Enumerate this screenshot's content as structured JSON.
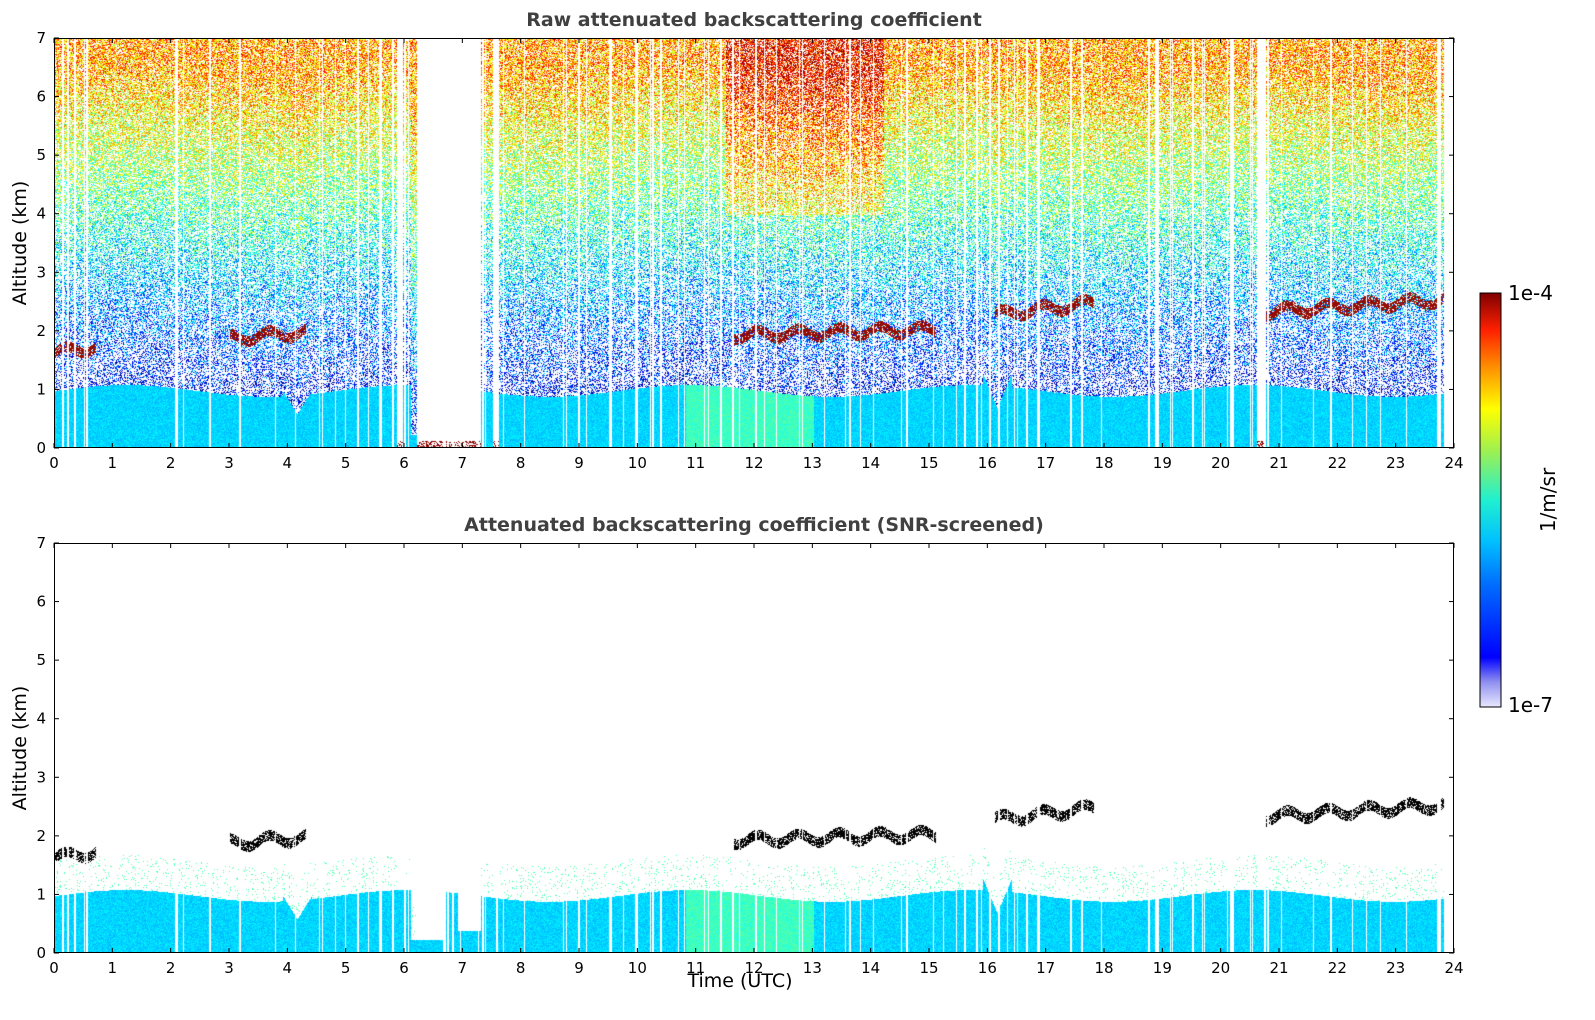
{
  "chart_data": [
    {
      "type": "heatmap",
      "title": "Raw attenuated backscattering coefficient",
      "xlabel": "",
      "ylabel": "Altitude (km)",
      "xlim": [
        0,
        24
      ],
      "ylim": [
        0,
        7
      ],
      "xticks": [
        "0",
        "1",
        "2",
        "3",
        "4",
        "5",
        "6",
        "7",
        "8",
        "9",
        "10",
        "11",
        "12",
        "13",
        "14",
        "15",
        "16",
        "17",
        "18",
        "19",
        "20",
        "21",
        "22",
        "23",
        "24"
      ],
      "yticks": [
        "0",
        "1",
        "2",
        "3",
        "4",
        "5",
        "6",
        "7"
      ],
      "features": {
        "boundary_layer_top_km": 1.0,
        "cloud_layers": [
          {
            "t_start": 0.0,
            "t_end": 0.7,
            "alt_km": 1.65
          },
          {
            "t_start": 3.0,
            "t_end": 4.3,
            "alt_km": 1.9
          },
          {
            "t_start": 11.6,
            "t_end": 15.1,
            "alt_km": 1.95
          },
          {
            "t_start": 16.1,
            "t_end": 17.8,
            "alt_km": 2.3
          },
          {
            "t_start": 20.7,
            "t_end": 23.8,
            "alt_km": 2.35
          }
        ]
      }
    },
    {
      "type": "heatmap",
      "title": "Attenuated backscattering coefficient (SNR-screened)",
      "xlabel": "Time (UTC)",
      "ylabel": "Altitude (km)",
      "xlim": [
        0,
        24
      ],
      "ylim": [
        0,
        7
      ],
      "xticks": [
        "0",
        "1",
        "2",
        "3",
        "4",
        "5",
        "6",
        "7",
        "8",
        "9",
        "10",
        "11",
        "12",
        "13",
        "14",
        "15",
        "16",
        "17",
        "18",
        "19",
        "20",
        "21",
        "22",
        "23",
        "24"
      ],
      "yticks": [
        "0",
        "1",
        "2",
        "3",
        "4",
        "5",
        "6",
        "7"
      ],
      "features": {
        "boundary_layer_top_km": 1.0,
        "cloud_layers": [
          {
            "t_start": 0.0,
            "t_end": 0.7,
            "alt_km": 1.65
          },
          {
            "t_start": 3.0,
            "t_end": 4.3,
            "alt_km": 1.9
          },
          {
            "t_start": 11.6,
            "t_end": 15.1,
            "alt_km": 1.95
          },
          {
            "t_start": 16.1,
            "t_end": 17.8,
            "alt_km": 2.3
          },
          {
            "t_start": 20.7,
            "t_end": 23.8,
            "alt_km": 2.35
          }
        ]
      }
    }
  ],
  "colorbar": {
    "label": "1/m/sr",
    "min_label": "1e-7",
    "max_label": "1e-4",
    "colormap": "jet",
    "scale": "log"
  },
  "colors": {
    "title": "#404040",
    "cloud_raw": "#8b0000",
    "cloud_screened": "#000000"
  }
}
